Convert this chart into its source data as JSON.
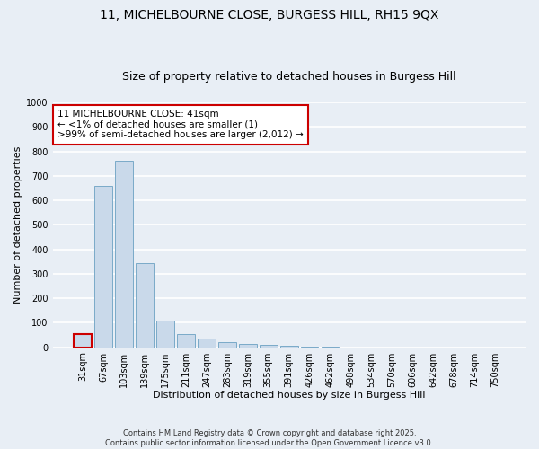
{
  "title_line1": "11, MICHELBOURNE CLOSE, BURGESS HILL, RH15 9QX",
  "title_line2": "Size of property relative to detached houses in Burgess Hill",
  "xlabel": "Distribution of detached houses by size in Burgess Hill",
  "ylabel": "Number of detached properties",
  "footer_line1": "Contains HM Land Registry data © Crown copyright and database right 2025.",
  "footer_line2": "Contains public sector information licensed under the Open Government Licence v3.0.",
  "categories": [
    "31sqm",
    "67sqm",
    "103sqm",
    "139sqm",
    "175sqm",
    "211sqm",
    "247sqm",
    "283sqm",
    "319sqm",
    "355sqm",
    "391sqm",
    "426sqm",
    "462sqm",
    "498sqm",
    "534sqm",
    "570sqm",
    "606sqm",
    "642sqm",
    "678sqm",
    "714sqm",
    "750sqm"
  ],
  "values": [
    55,
    660,
    760,
    345,
    110,
    55,
    35,
    20,
    15,
    10,
    5,
    3,
    1,
    0,
    0,
    0,
    0,
    0,
    0,
    0,
    0
  ],
  "bar_color": "#c9d9ea",
  "bar_edge_color": "#7aaac8",
  "highlight_bar_index": 0,
  "highlight_bar_edge_color": "#cc0000",
  "annotation_text": "11 MICHELBOURNE CLOSE: 41sqm\n← <1% of detached houses are smaller (1)\n>99% of semi-detached houses are larger (2,012) →",
  "annotation_box_color": "white",
  "annotation_box_edge_color": "#cc0000",
  "ylim": [
    0,
    1000
  ],
  "yticks": [
    0,
    100,
    200,
    300,
    400,
    500,
    600,
    700,
    800,
    900,
    1000
  ],
  "bg_color": "#e8eef5",
  "grid_color": "white",
  "title_fontsize": 10,
  "subtitle_fontsize": 9,
  "axis_label_fontsize": 8,
  "tick_fontsize": 7,
  "annotation_fontsize": 7.5,
  "footer_fontsize": 6
}
